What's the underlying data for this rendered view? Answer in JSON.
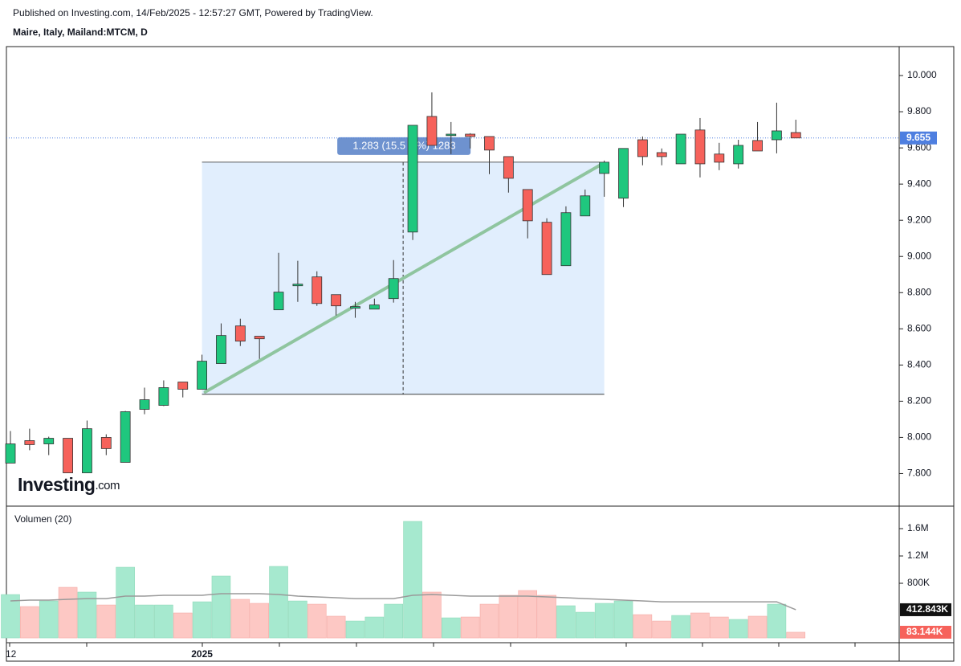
{
  "header": {
    "published": "Published on Investing.com, 14/Feb/2025 - 12:57:27 GMT, Powered by TradingView."
  },
  "logo": {
    "main": "Investing",
    "suffix": ".com"
  },
  "chart_data": [
    {
      "type": "candlestick",
      "title": "Maire, Italy, Mailand:MTCM, D",
      "categories": [
        "12",
        null,
        null,
        null,
        null,
        null,
        null,
        null,
        null,
        null,
        "2025",
        null,
        null,
        null,
        null,
        null,
        null,
        null,
        null,
        null,
        null,
        null,
        null,
        null,
        null,
        null,
        null,
        null,
        null,
        null,
        null,
        null,
        null,
        null,
        null,
        null,
        null,
        null,
        null,
        null,
        null,
        null
      ],
      "open": [
        7.858,
        7.982,
        7.964,
        7.995,
        7.804,
        8.0,
        7.862,
        8.155,
        8.177,
        8.306,
        8.266,
        8.408,
        8.616,
        8.559,
        8.705,
        8.838,
        8.887,
        8.789,
        8.714,
        8.709,
        8.767,
        9.135,
        9.774,
        9.668,
        9.676,
        9.663,
        9.552,
        9.37,
        9.189,
        8.949,
        9.224,
        9.459,
        9.322,
        9.645,
        9.574,
        9.512,
        9.699,
        9.566,
        9.512,
        9.641,
        9.645,
        9.685
      ],
      "high": [
        8.035,
        8.048,
        8.004,
        7.995,
        8.093,
        8.017,
        8.146,
        8.275,
        8.315,
        8.306,
        8.457,
        8.63,
        8.656,
        8.559,
        9.02,
        8.976,
        8.918,
        8.789,
        8.749,
        8.767,
        8.98,
        9.725,
        9.907,
        9.743,
        9.681,
        9.663,
        9.552,
        9.37,
        9.211,
        9.277,
        9.37,
        9.53,
        9.597,
        9.663,
        9.597,
        9.676,
        9.765,
        9.628,
        9.645,
        9.743,
        9.85,
        9.756
      ],
      "low": [
        7.858,
        7.929,
        7.902,
        7.804,
        7.804,
        7.902,
        7.862,
        8.128,
        8.173,
        8.221,
        8.266,
        8.408,
        8.505,
        8.434,
        8.705,
        8.749,
        8.727,
        8.674,
        8.661,
        8.709,
        8.745,
        9.091,
        9.614,
        9.566,
        9.597,
        9.455,
        9.353,
        9.1,
        8.9,
        8.949,
        9.224,
        9.33,
        9.273,
        9.504,
        9.504,
        9.512,
        9.437,
        9.477,
        9.486,
        9.583,
        9.57,
        9.655
      ],
      "close": [
        7.964,
        7.96,
        7.995,
        7.804,
        8.048,
        7.938,
        8.142,
        8.208,
        8.275,
        8.266,
        8.421,
        8.563,
        8.532,
        8.545,
        8.803,
        8.847,
        8.74,
        8.727,
        8.723,
        8.732,
        8.878,
        9.725,
        9.614,
        9.676,
        9.663,
        9.588,
        9.432,
        9.197,
        8.9,
        9.242,
        9.335,
        9.521,
        9.597,
        9.552,
        9.552,
        9.676,
        9.512,
        9.521,
        9.614,
        9.583,
        9.694,
        9.655
      ],
      "up_color": "#1fc77e",
      "down_color": "#f6625b",
      "ylim": [
        7.62,
        10.16
      ],
      "yticks": [
        {
          "value": 7.8,
          "label": "7.800"
        },
        {
          "value": 8.0,
          "label": "8.000"
        },
        {
          "value": 8.2,
          "label": "8.200"
        },
        {
          "value": 8.4,
          "label": "8.400"
        },
        {
          "value": 8.6,
          "label": "8.600"
        },
        {
          "value": 8.8,
          "label": "8.800"
        },
        {
          "value": 9.0,
          "label": "9.000"
        },
        {
          "value": 9.2,
          "label": "9.200"
        },
        {
          "value": 9.4,
          "label": "9.400"
        },
        {
          "value": 9.6,
          "label": "9.600"
        },
        {
          "value": 9.8,
          "label": "9.800"
        },
        {
          "value": 10.0,
          "label": "10.000"
        }
      ],
      "last_price": 9.655,
      "last_price_color": "#4e7fe0",
      "measure": {
        "start_index": 10,
        "end_index": 31,
        "low": 8.238,
        "high": 9.521,
        "label_left": "1.283 (15.5",
        "label_right": "%) 1283"
      }
    },
    {
      "type": "bar",
      "title": "Volumen (20)",
      "values": [
        635000,
        459000,
        541000,
        741000,
        671000,
        482000,
        1035000,
        482000,
        482000,
        365000,
        529000,
        906000,
        565000,
        506000,
        1047000,
        541000,
        494000,
        318000,
        247000,
        306000,
        494000,
        1706000,
        671000,
        294000,
        306000,
        494000,
        624000,
        694000,
        624000,
        471000,
        376000,
        506000,
        541000,
        341000,
        247000,
        329000,
        365000,
        306000,
        271000,
        318000,
        494000,
        83144
      ],
      "value_labels": [
        null,
        null,
        null,
        null,
        null,
        null,
        null,
        null,
        null,
        null,
        null,
        null,
        null,
        null,
        null,
        null,
        null,
        null,
        null,
        null,
        null,
        null,
        null,
        null,
        null,
        null,
        null,
        null,
        null,
        null,
        null,
        null,
        null,
        null,
        null,
        null,
        null,
        null,
        null,
        null,
        null,
        "83.144K"
      ],
      "ma_values": [
        541000,
        553000,
        553000,
        565000,
        576000,
        576000,
        612000,
        612000,
        624000,
        624000,
        624000,
        647000,
        647000,
        647000,
        635000,
        612000,
        600000,
        588000,
        576000,
        576000,
        576000,
        624000,
        635000,
        624000,
        612000,
        612000,
        612000,
        612000,
        600000,
        588000,
        576000,
        565000,
        553000,
        541000,
        529000,
        529000,
        529000,
        529000,
        529000,
        529000,
        529000,
        412843
      ],
      "ma_value_labels": [
        null,
        null,
        null,
        null,
        null,
        null,
        null,
        null,
        null,
        null,
        null,
        null,
        null,
        null,
        null,
        null,
        null,
        null,
        null,
        null,
        null,
        null,
        null,
        null,
        null,
        null,
        null,
        null,
        null,
        null,
        null,
        null,
        null,
        null,
        null,
        null,
        null,
        null,
        null,
        null,
        null,
        "412.843K"
      ],
      "up_color": "#a6e9cf",
      "down_color": "#fdc8c4",
      "ma_color": "#9a9a9a",
      "ylim": [
        -70000,
        1906000
      ],
      "yticks": [
        {
          "value": 800000,
          "label": "800K"
        },
        {
          "value": 1200000,
          "label": "1.2M"
        },
        {
          "value": 1600000,
          "label": "1.6M"
        }
      ]
    }
  ]
}
